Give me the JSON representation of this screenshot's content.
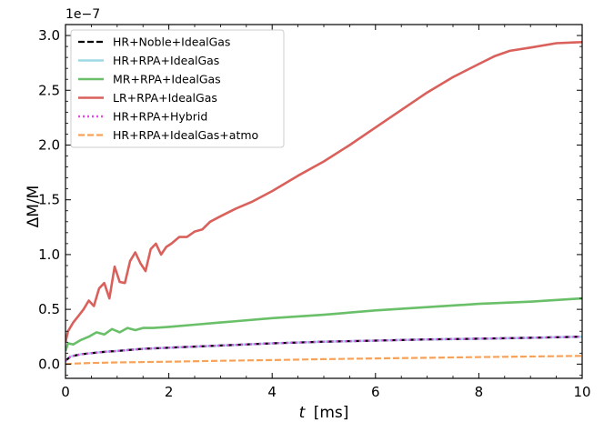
{
  "chart_data": {
    "type": "line",
    "title": "",
    "xlabel_italic": "t",
    "xlabel_unit": "[ms]",
    "ylabel": "ΔM/M",
    "y_multiplier_label": "1e−7",
    "xlim": [
      0,
      10
    ],
    "ylim": [
      -0.13,
      3.1
    ],
    "xticks": [
      0,
      2,
      4,
      6,
      8,
      10
    ],
    "xtick_labels": [
      "0",
      "2",
      "4",
      "6",
      "8",
      "10"
    ],
    "yticks": [
      0.0,
      0.5,
      1.0,
      1.5,
      2.0,
      2.5,
      3.0
    ],
    "ytick_labels": [
      "0.0",
      "0.5",
      "1.0",
      "1.5",
      "2.0",
      "2.5",
      "3.0"
    ],
    "grid": false,
    "legend_position": "top-left",
    "series": [
      {
        "name": "HR+Noble+IdealGas",
        "color": "#000000",
        "dash": "dashed",
        "x": [
          0,
          0.1,
          0.3,
          0.5,
          0.7,
          1.0,
          1.5,
          2,
          3,
          4,
          5,
          6,
          7,
          8,
          9,
          10
        ],
        "y": [
          0.03,
          0.07,
          0.09,
          0.1,
          0.11,
          0.12,
          0.14,
          0.15,
          0.17,
          0.19,
          0.205,
          0.215,
          0.225,
          0.232,
          0.24,
          0.25
        ]
      },
      {
        "name": "HR+RPA+IdealGas",
        "color": "#9ed9e6",
        "dash": "solid",
        "x": [
          0,
          0.1,
          0.3,
          0.5,
          0.7,
          1.0,
          1.5,
          2,
          3,
          4,
          5,
          6,
          7,
          8,
          9,
          10
        ],
        "y": [
          0.03,
          0.07,
          0.09,
          0.1,
          0.11,
          0.12,
          0.14,
          0.15,
          0.17,
          0.19,
          0.205,
          0.215,
          0.225,
          0.232,
          0.24,
          0.25
        ]
      },
      {
        "name": "MR+RPA+IdealGas",
        "color": "#6abf69",
        "dash": "solid",
        "x": [
          0,
          0.05,
          0.15,
          0.3,
          0.45,
          0.6,
          0.75,
          0.9,
          1.05,
          1.2,
          1.35,
          1.5,
          1.7,
          2,
          2.5,
          3,
          4,
          5,
          6,
          7,
          8,
          9,
          10
        ],
        "y": [
          0.12,
          0.19,
          0.18,
          0.22,
          0.25,
          0.29,
          0.27,
          0.32,
          0.29,
          0.33,
          0.31,
          0.33,
          0.33,
          0.34,
          0.36,
          0.38,
          0.42,
          0.45,
          0.49,
          0.52,
          0.55,
          0.57,
          0.6
        ]
      },
      {
        "name": "LR+RPA+IdealGas",
        "color": "#d9605b",
        "dash": "solid",
        "x": [
          0,
          0.05,
          0.15,
          0.25,
          0.35,
          0.45,
          0.55,
          0.65,
          0.75,
          0.85,
          0.95,
          1.05,
          1.15,
          1.25,
          1.35,
          1.45,
          1.55,
          1.65,
          1.75,
          1.85,
          1.95,
          2.05,
          2.2,
          2.35,
          2.5,
          2.65,
          2.8,
          3.0,
          3.3,
          3.6,
          4.0,
          4.5,
          5.0,
          5.5,
          6.0,
          6.5,
          7.0,
          7.5,
          8.0,
          8.3,
          8.6,
          9.0,
          9.5,
          10.0
        ],
        "y": [
          0.2,
          0.3,
          0.38,
          0.44,
          0.5,
          0.58,
          0.53,
          0.69,
          0.74,
          0.6,
          0.89,
          0.75,
          0.74,
          0.94,
          1.02,
          0.92,
          0.85,
          1.05,
          1.1,
          1.0,
          1.07,
          1.1,
          1.16,
          1.16,
          1.21,
          1.23,
          1.3,
          1.35,
          1.42,
          1.48,
          1.58,
          1.72,
          1.85,
          2.0,
          2.16,
          2.32,
          2.48,
          2.62,
          2.74,
          2.81,
          2.86,
          2.89,
          2.93,
          2.94
        ]
      },
      {
        "name": "HR+RPA+Hybrid",
        "color": "#e24ce6",
        "dash": "dotted",
        "x": [
          0,
          0.1,
          0.3,
          0.5,
          0.7,
          1.0,
          1.5,
          2,
          3,
          4,
          5,
          6,
          7,
          8,
          9,
          10
        ],
        "y": [
          0.03,
          0.07,
          0.09,
          0.1,
          0.11,
          0.12,
          0.14,
          0.15,
          0.17,
          0.19,
          0.205,
          0.215,
          0.225,
          0.232,
          0.24,
          0.25
        ]
      },
      {
        "name": "HR+RPA+IdealGas+atmo",
        "color": "#f5a25d",
        "dash": "dashed",
        "x": [
          0,
          0.2,
          0.5,
          1,
          2,
          3,
          4,
          5,
          6,
          7,
          8,
          9,
          10
        ],
        "y": [
          0.0,
          0.005,
          0.01,
          0.015,
          0.022,
          0.03,
          0.037,
          0.045,
          0.052,
          0.058,
          0.064,
          0.069,
          0.075
        ]
      }
    ]
  }
}
